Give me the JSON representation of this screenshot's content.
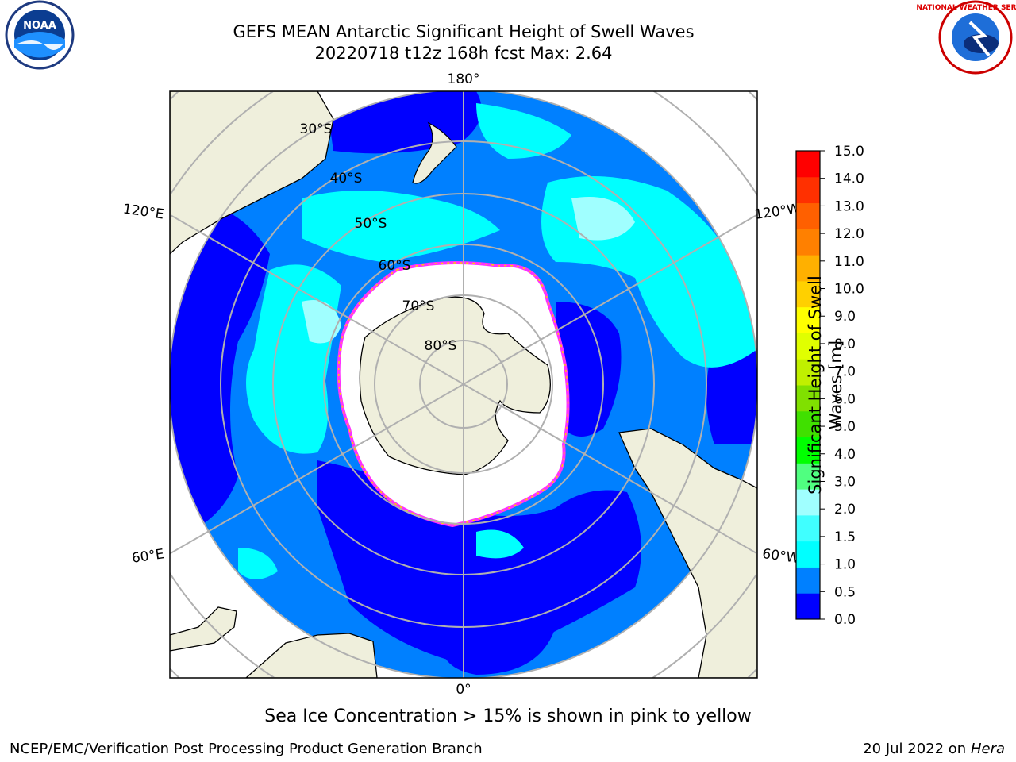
{
  "title": {
    "line1": "GEFS MEAN Antarctic Significant Height of Swell Waves",
    "line2": "20220718 t12z 168h fcst   Max: 2.64"
  },
  "map": {
    "projection": "south-polar-stereographic",
    "longitude_labels": [
      "180°",
      "120°E",
      "120°W",
      "60°E",
      "60°W",
      "0°"
    ],
    "latitude_labels": [
      "30°S",
      "40°S",
      "50°S",
      "60°S",
      "70°S",
      "80°S"
    ]
  },
  "colorbar": {
    "label": "Significant Height of Swell Waves [m]",
    "label_line1": "Significant Height of Swell",
    "label_line2": "Waves [m]",
    "ticks": [
      "15.0",
      "14.0",
      "13.0",
      "12.0",
      "11.0",
      "10.0",
      "9.0",
      "8.0",
      "7.0",
      "6.0",
      "5.0",
      "4.0",
      "3.0",
      "2.0",
      "1.5",
      "1.0",
      "0.5",
      "0.0"
    ],
    "colors": [
      "#0000ff",
      "#0080ff",
      "#00ffff",
      "#40ffff",
      "#a0ffff",
      "#50ff80",
      "#00ff00",
      "#40e000",
      "#80e000",
      "#c0f000",
      "#e0ff00",
      "#ffff00",
      "#ffd000",
      "#ffb000",
      "#ff8000",
      "#ff6000",
      "#ff3000",
      "#ff0000"
    ]
  },
  "colors": {
    "land": "#efefdc",
    "ocean_low": "#0000ff",
    "ocean_mid": "#0080ff",
    "ocean_high": "#00ffff",
    "ice": "#ffffff",
    "ice_edge": "#ff30ff",
    "grid": "#b0b0b0"
  },
  "logos": {
    "left": "NOAA",
    "right": "NATIONAL WEATHER SERVICE"
  },
  "note": "Sea Ice Concentration > 15% is shown in pink to yellow",
  "footer": {
    "left": "NCEP/EMC/Verification Post Processing Product Generation Branch",
    "right_date": "20 Jul 2022 on ",
    "right_host": "Hera"
  }
}
